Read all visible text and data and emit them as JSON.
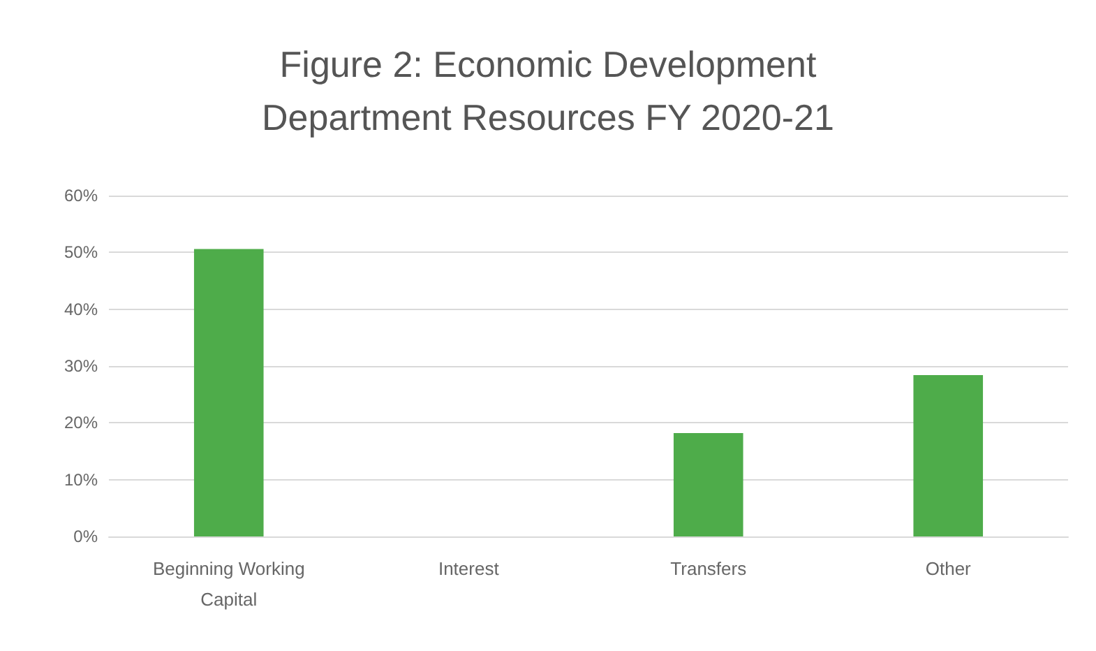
{
  "chart_data": {
    "type": "bar",
    "title": "Figure 2: Economic Development\nDepartment Resources FY 2020-21",
    "categories": [
      "Beginning Working\nCapital",
      "Interest",
      "Transfers",
      "Other"
    ],
    "values": [
      50.6,
      0,
      18.2,
      28.4
    ],
    "color": "#4eac4a",
    "ylim": [
      0,
      60
    ],
    "yticks": [
      {
        "value": 0,
        "label": "0%"
      },
      {
        "value": 10,
        "label": "10%"
      },
      {
        "value": 20,
        "label": "20%"
      },
      {
        "value": 30,
        "label": "30%"
      },
      {
        "value": 40,
        "label": "40%"
      },
      {
        "value": 50,
        "label": "50%"
      },
      {
        "value": 60,
        "label": "60%"
      }
    ],
    "grid": true
  }
}
